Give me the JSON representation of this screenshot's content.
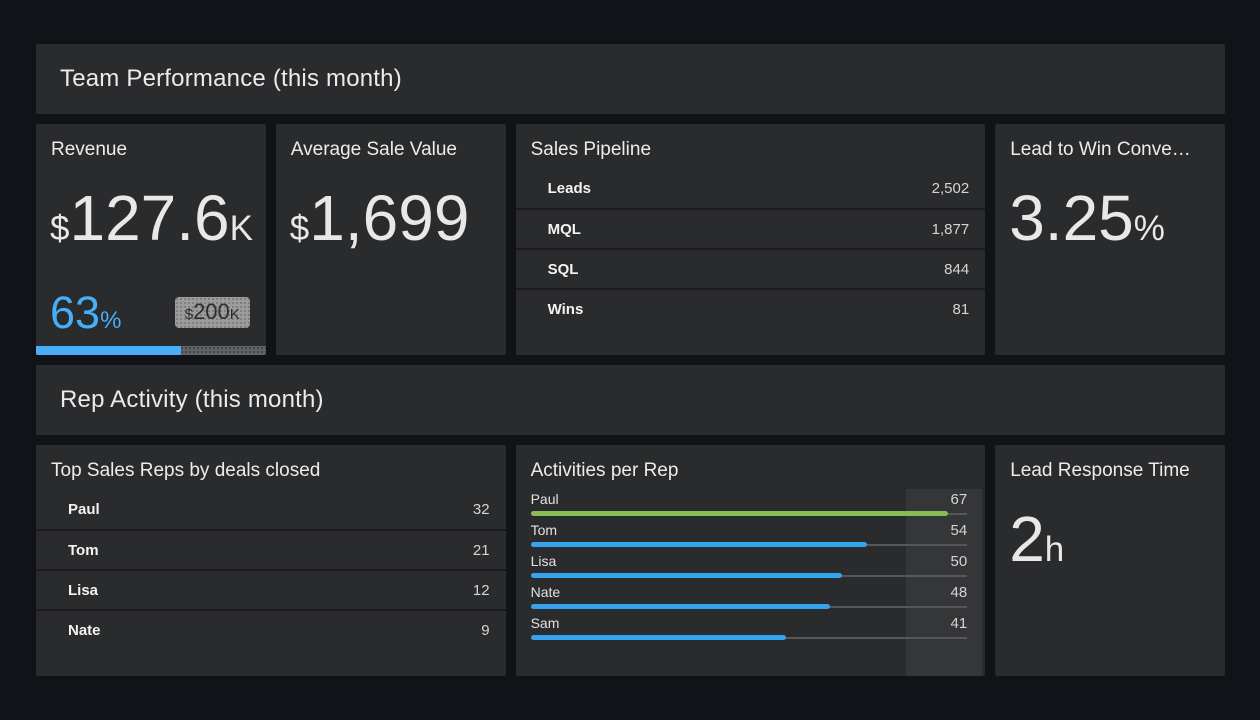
{
  "theme": {
    "page_bg": "#121318",
    "card_bg": "#2a2b2d",
    "accent_blue": "#47aef7",
    "bar_blue": "#35a3ee",
    "bar_green": "#8abc55",
    "badge_bg": "#9c9c9c",
    "row_divider": "#101114"
  },
  "sections": {
    "team": {
      "title": "Team Performance (this month)"
    },
    "rep": {
      "title": "Rep Activity (this month)"
    }
  },
  "widgets": {
    "revenue": {
      "title": "Revenue",
      "prefix": "$",
      "value": "127.6",
      "suffix": "K",
      "percent": "63",
      "percent_suffix": "%",
      "goal_prefix": "$",
      "goal": "200",
      "goal_suffix": "K"
    },
    "avg_sale_value": {
      "title": "Average Sale Value",
      "prefix": "$",
      "value": "1,699"
    },
    "sales_pipeline": {
      "title": "Sales Pipeline",
      "rows": [
        {
          "label": "Leads",
          "value": "2,502"
        },
        {
          "label": "MQL",
          "value": "1,877"
        },
        {
          "label": "SQL",
          "value": "844"
        },
        {
          "label": "Wins",
          "value": "81"
        }
      ]
    },
    "lead_to_win": {
      "title": "Lead to Win Conve…",
      "value": "3.25",
      "suffix": "%"
    },
    "top_reps": {
      "title": "Top Sales Reps by deals closed",
      "rows": [
        {
          "label": "Paul",
          "value": "32"
        },
        {
          "label": "Tom",
          "value": "21"
        },
        {
          "label": "Lisa",
          "value": "12"
        },
        {
          "label": "Nate",
          "value": "9"
        }
      ]
    },
    "activities": {
      "title": "Activities per Rep",
      "scale_max": 70,
      "bars": [
        {
          "label": "Paul",
          "value": 67,
          "color": "green"
        },
        {
          "label": "Tom",
          "value": 54,
          "color": "blue"
        },
        {
          "label": "Lisa",
          "value": 50,
          "color": "blue"
        },
        {
          "label": "Nate",
          "value": 48,
          "color": "blue"
        },
        {
          "label": "Sam",
          "value": 41,
          "color": "blue"
        }
      ]
    },
    "lead_response": {
      "title": "Lead Response Time",
      "value": "2",
      "suffix": "h"
    }
  },
  "chart_data": [
    {
      "type": "bar",
      "orientation": "horizontal",
      "title": "Activities per Rep",
      "categories": [
        "Paul",
        "Tom",
        "Lisa",
        "Nate",
        "Sam"
      ],
      "values": [
        67,
        54,
        50,
        48,
        41
      ],
      "bar_colors": [
        "#8abc55",
        "#35a3ee",
        "#35a3ee",
        "#35a3ee",
        "#35a3ee"
      ],
      "xlim": [
        0,
        70
      ],
      "grid": false,
      "legend": false
    },
    {
      "type": "table",
      "title": "Sales Pipeline",
      "categories": [
        "Leads",
        "MQL",
        "SQL",
        "Wins"
      ],
      "values": [
        2502,
        1877,
        844,
        81
      ]
    },
    {
      "type": "table",
      "title": "Top Sales Reps by deals closed",
      "categories": [
        "Paul",
        "Tom",
        "Lisa",
        "Nate"
      ],
      "values": [
        32,
        21,
        12,
        9
      ]
    }
  ]
}
